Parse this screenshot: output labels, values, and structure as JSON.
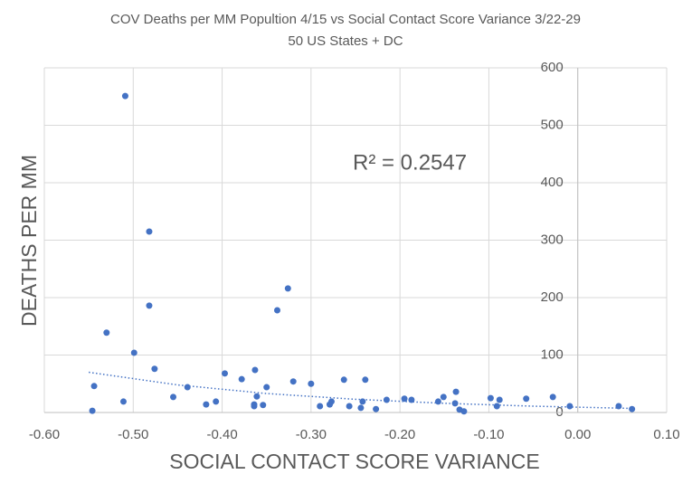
{
  "chart_data": {
    "type": "scatter",
    "title": "COV Deaths per MM Popultion 4/15 vs Social Contact Score Variance 3/22-29",
    "subtitle": "50 US States + DC",
    "x_label": "SOCIAL CONTACT SCORE VARIANCE",
    "y_label": "DEATHS PER MM",
    "annotation": "R² = 0.2547",
    "color": "#4472c4",
    "x": [
      -0.546,
      -0.544,
      -0.509,
      -0.53,
      -0.511,
      -0.499,
      -0.482,
      -0.482,
      -0.476,
      -0.455,
      -0.439,
      -0.418,
      -0.407,
      -0.397,
      -0.378,
      -0.364,
      -0.364,
      -0.363,
      -0.361,
      -0.354,
      -0.35,
      -0.338,
      -0.326,
      -0.32,
      -0.3,
      -0.29,
      -0.279,
      -0.277,
      -0.263,
      -0.257,
      -0.244,
      -0.242,
      -0.239,
      -0.227,
      -0.215,
      -0.195,
      -0.187,
      -0.157,
      -0.151,
      -0.138,
      -0.137,
      -0.133,
      -0.128,
      -0.098,
      -0.091,
      -0.088,
      -0.058,
      -0.028,
      -0.009,
      0.046,
      0.061
    ],
    "values": [
      3,
      46,
      551,
      139,
      19,
      104,
      315,
      186,
      76,
      27,
      44,
      14,
      19,
      68,
      58,
      14,
      11,
      74,
      28,
      13,
      44,
      178,
      216,
      54,
      50,
      11,
      14,
      19,
      57,
      11,
      8,
      19,
      57,
      6,
      22,
      24,
      22,
      19,
      27,
      16,
      36,
      5,
      2,
      25,
      11,
      22,
      24,
      27,
      11,
      11,
      6
    ],
    "trendline": {
      "color": "#4472c4",
      "x": [
        -0.55,
        -0.45,
        -0.35,
        -0.25,
        -0.15,
        -0.05,
        0.065
      ],
      "values": [
        70,
        48,
        33,
        23,
        16,
        11,
        7
      ]
    },
    "xlim": [
      -0.6,
      0.1
    ],
    "xticks": [
      {
        "value": -0.6,
        "label": "-0.60"
      },
      {
        "value": -0.5,
        "label": "-0.50"
      },
      {
        "value": -0.4,
        "label": "-0.40"
      },
      {
        "value": -0.3,
        "label": "-0.30"
      },
      {
        "value": -0.2,
        "label": "-0.20"
      },
      {
        "value": -0.1,
        "label": "-0.10"
      },
      {
        "value": 0,
        "label": "0.00"
      },
      {
        "value": 0.1,
        "label": "0.10"
      }
    ],
    "ylim": [
      0,
      600
    ],
    "yticks": [
      0,
      100,
      200,
      300,
      400,
      500,
      600
    ],
    "grid": true
  }
}
